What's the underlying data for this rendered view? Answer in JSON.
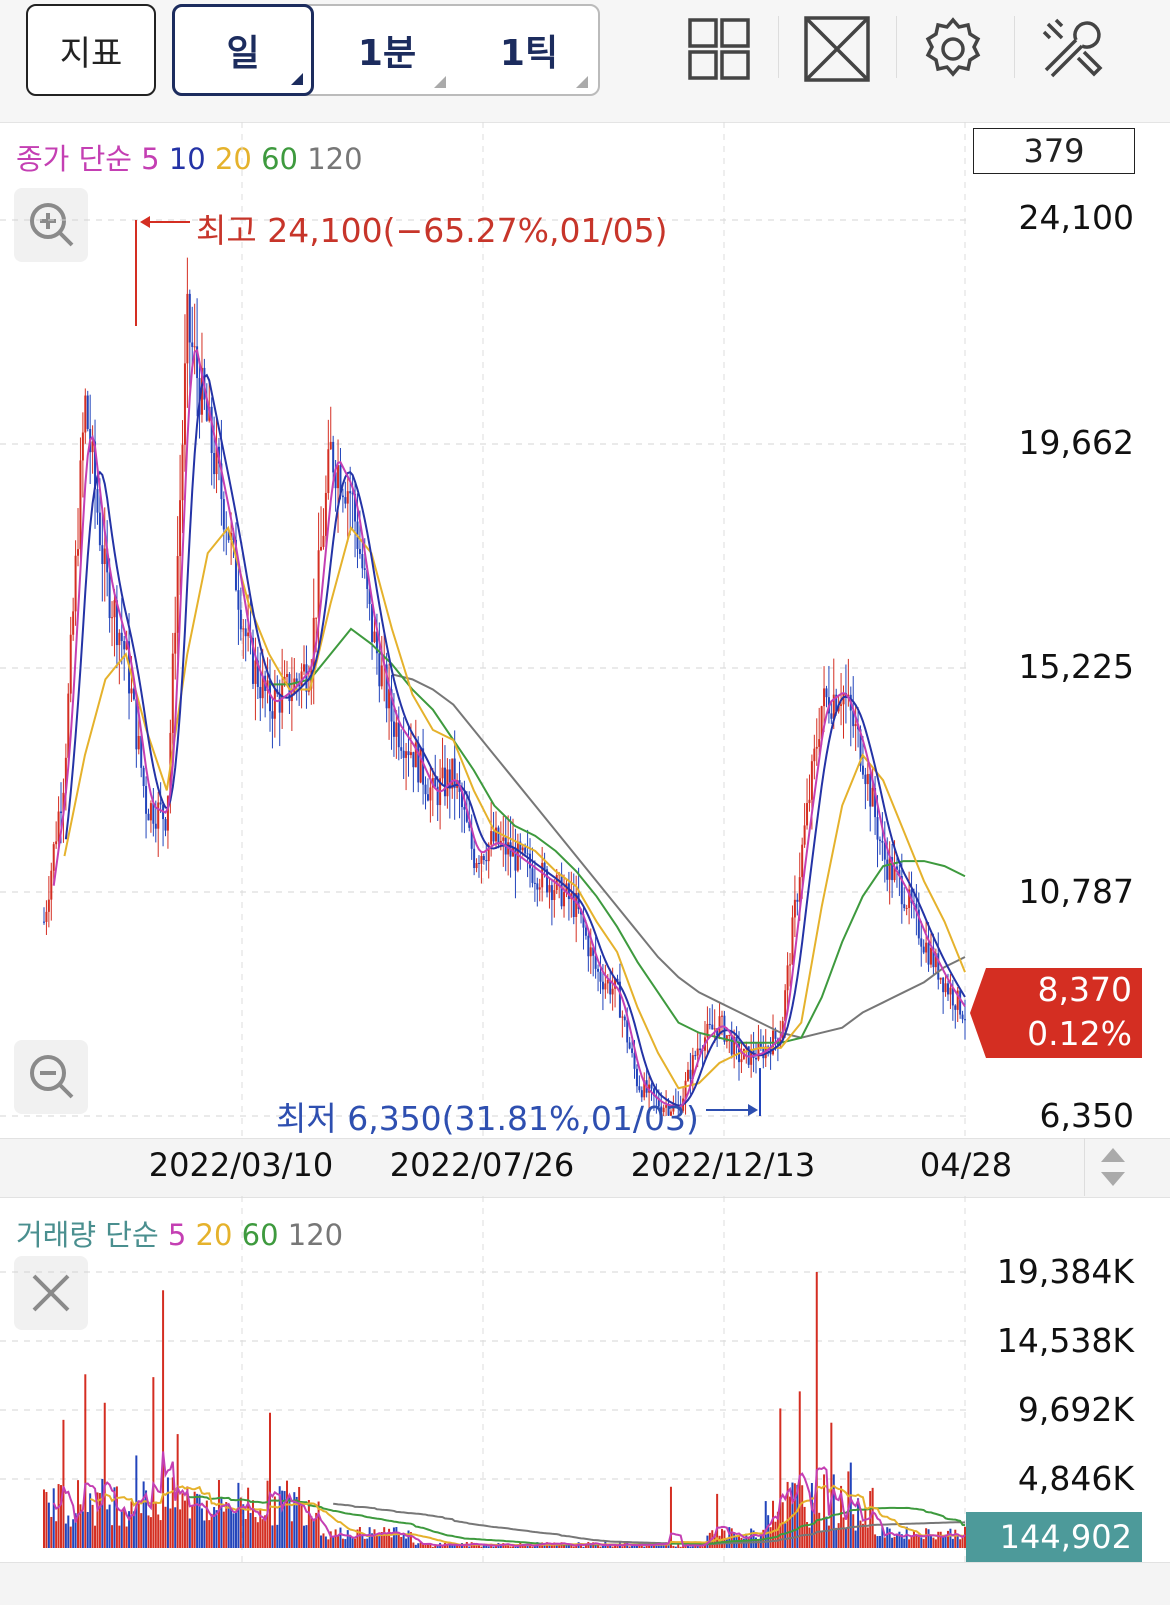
{
  "toolbar": {
    "indicator_label": "지표",
    "periods": [
      {
        "label": "일",
        "active": true
      },
      {
        "label": "1분",
        "active": false
      },
      {
        "label": "1틱",
        "active": false
      }
    ],
    "icons": [
      "grid-layout-icon",
      "fullscreen-icon",
      "settings-gear-icon",
      "tools-icon"
    ]
  },
  "price_panel": {
    "legend_prefix": "종가 단순",
    "ma_legend": [
      {
        "label": "5",
        "color": "#c43fb3"
      },
      {
        "label": "10",
        "color": "#2433a6"
      },
      {
        "label": "20",
        "color": "#e5b22c"
      },
      {
        "label": "60",
        "color": "#3e9a3e"
      },
      {
        "label": "120",
        "color": "#777777"
      }
    ],
    "count_box": "379",
    "y_labels": [
      "24,100",
      "19,662",
      "15,225",
      "10,787",
      "6,350"
    ],
    "current_price": "8,370",
    "current_change": "0.12%",
    "high_annotation": "최고 24,100(−65.27%,01/05)",
    "low_annotation": "최저 6,350(31.81%,01/03)",
    "accent_up": "#d42e22",
    "accent_down": "#2244bb"
  },
  "date_axis": [
    "2022/03/10",
    "2022/07/26",
    "2022/12/13",
    "04/28"
  ],
  "volume_panel": {
    "legend_prefix": "거래량 단순",
    "ma_legend": [
      {
        "label": "5",
        "color": "#c43fb3"
      },
      {
        "label": "20",
        "color": "#e5b22c"
      },
      {
        "label": "60",
        "color": "#3e9a3e"
      },
      {
        "label": "120",
        "color": "#777777"
      }
    ],
    "y_labels": [
      "19,384K",
      "14,538K",
      "9,692K",
      "4,846K"
    ],
    "current_volume": "144,902"
  },
  "chart_data": {
    "type": "candlestick",
    "price_axis": {
      "ylim": [
        6350,
        24100
      ],
      "ticks": [
        24100,
        19662,
        15225,
        10787,
        6350
      ]
    },
    "x_ticks": [
      "2022/03/10",
      "2022/07/26",
      "2022/12/13",
      "04/28"
    ],
    "high": {
      "value": 24100,
      "date": "01/05",
      "change_pct": -65.27
    },
    "low": {
      "value": 6350,
      "date": "01/03",
      "change_pct": 31.81
    },
    "last_close": 8370,
    "last_change_pct": 0.12,
    "close_series": [
      10200,
      13200,
      20500,
      17000,
      15500,
      12500,
      12300,
      22000,
      20000,
      18000,
      15500,
      14500,
      14800,
      15300,
      19500,
      18700,
      16000,
      14200,
      13600,
      12700,
      13100,
      11500,
      11800,
      11500,
      11200,
      10900,
      10500,
      9200,
      8800,
      7000,
      6600,
      6500,
      7800,
      8200,
      7500,
      7600,
      8000,
      11500,
      14500,
      14800,
      13500,
      11500,
      10800,
      9800,
      9000,
      8370
    ],
    "moving_averages": {
      "20": [
        null,
        11500,
        13500,
        15000,
        15500,
        14000,
        12800,
        15500,
        17500,
        18000,
        16500,
        15500,
        14800,
        14800,
        16500,
        18000,
        17500,
        16000,
        14700,
        14000,
        13800,
        12800,
        12000,
        11800,
        11600,
        11200,
        10900,
        10200,
        9600,
        8500,
        7600,
        6900,
        7000,
        7400,
        7600,
        7700,
        7700,
        8200,
        10500,
        12500,
        13500,
        13000,
        12000,
        11000,
        10200,
        9200
      ],
      "60": [
        null,
        null,
        null,
        null,
        null,
        null,
        null,
        null,
        null,
        null,
        null,
        14900,
        14900,
        15000,
        15500,
        16000,
        15700,
        15300,
        14800,
        14400,
        13800,
        13200,
        12500,
        12100,
        11900,
        11600,
        11200,
        10700,
        10100,
        9400,
        8800,
        8200,
        8000,
        7900,
        7800,
        7800,
        7800,
        7900,
        8700,
        9800,
        10700,
        11300,
        11400,
        11400,
        11300,
        11100
      ],
      "120": [
        null,
        null,
        null,
        null,
        null,
        null,
        null,
        null,
        null,
        null,
        null,
        null,
        null,
        null,
        null,
        null,
        null,
        15100,
        15000,
        14800,
        14500,
        14000,
        13500,
        13000,
        12500,
        12000,
        11500,
        11000,
        10500,
        10000,
        9500,
        9100,
        8800,
        8600,
        8400,
        8200,
        8000,
        7900,
        8000,
        8100,
        8400,
        8600,
        8800,
        9000,
        9300,
        9500
      ]
    },
    "volume_axis": {
      "ticks": [
        19384,
        14538,
        9692,
        4846
      ],
      "unit": "K"
    },
    "volume_spikes": [
      {
        "pos": 0.02,
        "value": 9000
      },
      {
        "pos": 0.045,
        "value": 12200
      },
      {
        "pos": 0.065,
        "value": 10200
      },
      {
        "pos": 0.1,
        "value": 6500
      },
      {
        "pos": 0.12,
        "value": 12000
      },
      {
        "pos": 0.128,
        "value": 18100
      },
      {
        "pos": 0.145,
        "value": 8000
      },
      {
        "pos": 0.165,
        "value": 3800
      },
      {
        "pos": 0.245,
        "value": 9500
      },
      {
        "pos": 0.26,
        "value": 4000
      },
      {
        "pos": 0.68,
        "value": 4300
      },
      {
        "pos": 0.73,
        "value": 3800
      },
      {
        "pos": 0.8,
        "value": 9800
      },
      {
        "pos": 0.82,
        "value": 11000
      },
      {
        "pos": 0.84,
        "value": 19384
      },
      {
        "pos": 0.855,
        "value": 8800
      },
      {
        "pos": 0.875,
        "value": 6000
      }
    ],
    "last_volume": 144902
  }
}
